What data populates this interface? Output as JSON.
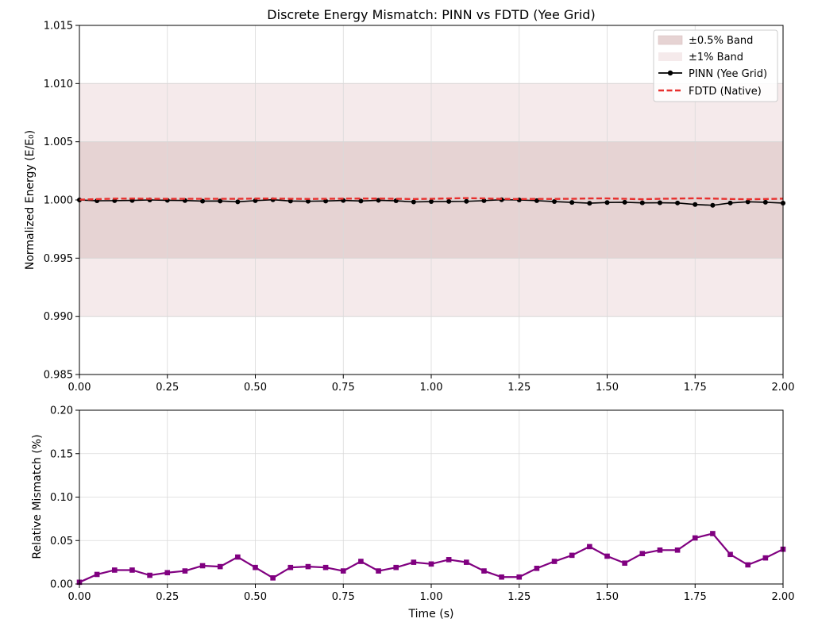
{
  "chart_data": [
    {
      "type": "line",
      "title": "Discrete Energy Mismatch: PINN vs FDTD (Yee Grid)",
      "xlabel": "",
      "ylabel": "Normalized Energy (E/E₀)",
      "xlim": [
        0,
        2
      ],
      "ylim": [
        0.985,
        1.015
      ],
      "grid": true,
      "legend_location": "top-right",
      "x_ticks": [
        0,
        0.25,
        0.5,
        0.75,
        1.0,
        1.25,
        1.5,
        1.75,
        2.0
      ],
      "x_tick_labels": [
        "0.00",
        "0.25",
        "0.50",
        "0.75",
        "1.00",
        "1.25",
        "1.50",
        "1.75",
        "2.00"
      ],
      "y_ticks": [
        0.985,
        0.99,
        0.995,
        1.0,
        1.005,
        1.01,
        1.015
      ],
      "y_tick_labels": [
        "0.985",
        "0.990",
        "0.995",
        "1.000",
        "1.005",
        "1.010",
        "1.015"
      ],
      "bands": [
        {
          "name": "±0.5% Band",
          "range": [
            0.995,
            1.005
          ],
          "color": "#e6d3d3"
        },
        {
          "name": "±1% Band",
          "range": [
            0.99,
            1.01
          ],
          "color": "#f5eaeb"
        }
      ],
      "x": [
        0,
        0.05,
        0.1,
        0.15,
        0.2,
        0.25,
        0.3,
        0.35,
        0.4,
        0.45,
        0.5,
        0.55,
        0.6,
        0.65,
        0.7,
        0.75,
        0.8,
        0.85,
        0.9,
        0.95,
        1.0,
        1.05,
        1.1,
        1.15,
        1.2,
        1.25,
        1.3,
        1.35,
        1.4,
        1.45,
        1.5,
        1.55,
        1.6,
        1.65,
        1.7,
        1.75,
        1.8,
        1.85,
        1.9,
        1.95,
        2.0
      ],
      "series": [
        {
          "name": "PINN (Yee Grid)",
          "color": "#000000",
          "marker": "circle",
          "values": [
            1.0,
            0.99993,
            0.99994,
            0.99996,
            1.0,
            0.99997,
            0.99995,
            0.9999,
            0.99991,
            0.99984,
            0.99994,
            1.00002,
            0.99991,
            0.99989,
            0.99991,
            0.99996,
            0.99991,
            0.99997,
            0.99993,
            0.99983,
            0.99986,
            0.99987,
            0.99988,
            0.99994,
            1.00002,
            1.0,
            0.99994,
            0.99986,
            0.99979,
            0.99972,
            0.99978,
            0.9998,
            0.99975,
            0.99976,
            0.99974,
            0.99961,
            0.99954,
            0.99974,
            0.99984,
            0.9998,
            0.99973
          ]
        },
        {
          "name": "FDTD (Native)",
          "color": "#e8302e",
          "style": "dashed",
          "values": [
            1.00002,
            1.00007,
            1.00011,
            1.00012,
            1.0001,
            1.0001,
            1.0001,
            1.0001,
            1.0001,
            1.0001,
            1.00012,
            1.00012,
            1.0001,
            1.00009,
            1.0001,
            1.00011,
            1.00012,
            1.00012,
            1.0001,
            1.00008,
            1.0001,
            1.00013,
            1.00016,
            1.00013,
            1.00009,
            1.00008,
            1.00009,
            1.00009,
            1.0001,
            1.00013,
            1.00013,
            1.0001,
            1.00006,
            1.0001,
            1.00012,
            1.00014,
            1.00012,
            1.00008,
            1.00006,
            1.00008,
            1.00011
          ]
        }
      ]
    },
    {
      "type": "line",
      "title": "",
      "xlabel": "Time (s)",
      "ylabel": "Relative Mismatch (%)",
      "xlim": [
        0,
        2
      ],
      "ylim": [
        0,
        0.2
      ],
      "grid": true,
      "x_ticks": [
        0,
        0.25,
        0.5,
        0.75,
        1.0,
        1.25,
        1.5,
        1.75,
        2.0
      ],
      "x_tick_labels": [
        "0.00",
        "0.25",
        "0.50",
        "0.75",
        "1.00",
        "1.25",
        "1.50",
        "1.75",
        "2.00"
      ],
      "y_ticks": [
        0,
        0.05,
        0.1,
        0.15,
        0.2
      ],
      "y_tick_labels": [
        "0.00",
        "0.05",
        "0.10",
        "0.15",
        "0.20"
      ],
      "x": [
        0,
        0.05,
        0.1,
        0.15,
        0.2,
        0.25,
        0.3,
        0.35,
        0.4,
        0.45,
        0.5,
        0.55,
        0.6,
        0.65,
        0.7,
        0.75,
        0.8,
        0.85,
        0.9,
        0.95,
        1.0,
        1.05,
        1.1,
        1.15,
        1.2,
        1.25,
        1.3,
        1.35,
        1.4,
        1.45,
        1.5,
        1.55,
        1.6,
        1.65,
        1.7,
        1.75,
        1.8,
        1.85,
        1.9,
        1.95,
        2.0
      ],
      "series": [
        {
          "name": "Relative Mismatch",
          "color": "#800080",
          "marker": "square",
          "values": [
            0.002,
            0.011,
            0.016,
            0.016,
            0.01,
            0.013,
            0.015,
            0.021,
            0.02,
            0.031,
            0.019,
            0.007,
            0.019,
            0.02,
            0.019,
            0.015,
            0.026,
            0.015,
            0.019,
            0.025,
            0.023,
            0.028,
            0.025,
            0.015,
            0.008,
            0.008,
            0.018,
            0.026,
            0.033,
            0.043,
            0.032,
            0.024,
            0.035,
            0.039,
            0.039,
            0.053,
            0.058,
            0.034,
            0.022,
            0.03,
            0.04
          ]
        }
      ]
    }
  ]
}
